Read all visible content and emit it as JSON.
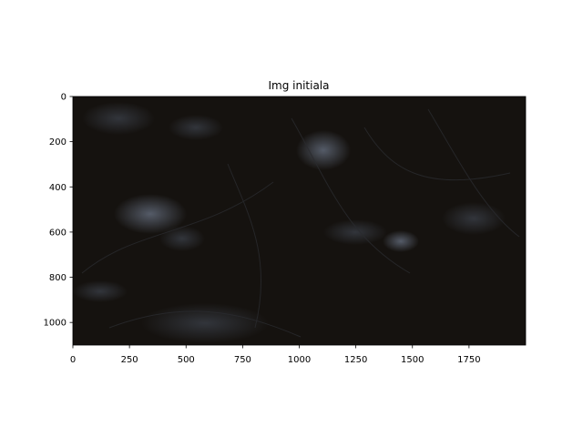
{
  "chart_data": {
    "type": "image",
    "title": "Img initiala",
    "xlabel": "",
    "ylabel": "",
    "x_ticks": [
      0,
      250,
      500,
      750,
      1000,
      1250,
      1500,
      1750
    ],
    "y_ticks": [
      0,
      200,
      400,
      600,
      800,
      1000
    ],
    "xlim": [
      0,
      2000
    ],
    "ylim": [
      1100,
      0
    ],
    "y_axis_inverted": true,
    "grid": false,
    "image_description": "very dark night-time photograph of branches and undergrowth with a few faint bluish-grey highlights",
    "colors": {
      "image_base": "#15120f",
      "highlight": "#5a6474",
      "frame": "#000000"
    }
  }
}
